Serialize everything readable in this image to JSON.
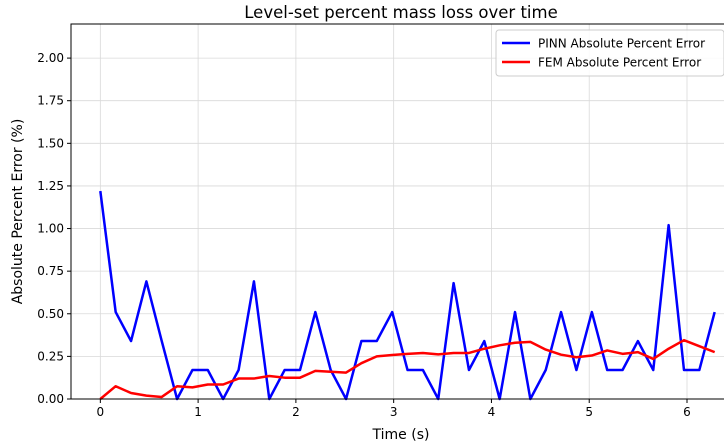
{
  "chart_data": {
    "type": "line",
    "title": "Level-set percent mass loss over time",
    "xlabel": "Time (s)",
    "ylabel": "Absolute Percent Error (%)",
    "xlim": [
      -0.3,
      6.45
    ],
    "ylim": [
      0,
      2.2
    ],
    "xticks": [
      0,
      1,
      2,
      3,
      4,
      5,
      6
    ],
    "yticks": [
      0.0,
      0.25,
      0.5,
      0.75,
      1.0,
      1.25,
      1.5,
      1.75,
      2.0
    ],
    "xtick_labels": [
      "0",
      "1",
      "2",
      "3",
      "4",
      "5",
      "6"
    ],
    "ytick_labels": [
      "0.00",
      "0.25",
      "0.50",
      "0.75",
      "1.00",
      "1.25",
      "1.50",
      "1.75",
      "2.00"
    ],
    "grid": true,
    "legend_position": "top-right",
    "x": [
      0,
      0.157,
      0.314,
      0.471,
      0.628,
      0.785,
      0.942,
      1.099,
      1.256,
      1.414,
      1.571,
      1.728,
      1.885,
      2.042,
      2.199,
      2.356,
      2.513,
      2.67,
      2.827,
      2.985,
      3.142,
      3.299,
      3.456,
      3.613,
      3.77,
      3.927,
      4.084,
      4.241,
      4.398,
      4.555,
      4.712,
      4.869,
      5.027,
      5.184,
      5.341,
      5.498,
      5.655,
      5.812,
      5.969,
      6.126,
      6.283
    ],
    "series": [
      {
        "name": "PINN Absolute Percent Error",
        "color": "#0000ff",
        "values": [
          1.22,
          0.51,
          0.34,
          0.69,
          0.34,
          0.0,
          0.17,
          0.17,
          0.0,
          0.17,
          0.69,
          0.0,
          0.17,
          0.17,
          0.51,
          0.17,
          0.0,
          0.34,
          0.34,
          0.51,
          0.17,
          0.17,
          0.0,
          0.68,
          0.17,
          0.34,
          0.0,
          0.51,
          0.0,
          0.17,
          0.51,
          0.17,
          0.51,
          0.17,
          0.17,
          0.34,
          0.17,
          1.02,
          0.17,
          0.17,
          0.51
        ]
      },
      {
        "name": "FEM Absolute Percent Error",
        "color": "#ff0000",
        "values": [
          0.0,
          0.075,
          0.035,
          0.02,
          0.012,
          0.075,
          0.068,
          0.085,
          0.085,
          0.12,
          0.12,
          0.135,
          0.125,
          0.125,
          0.165,
          0.16,
          0.155,
          0.21,
          0.25,
          0.258,
          0.265,
          0.27,
          0.262,
          0.27,
          0.27,
          0.295,
          0.315,
          0.33,
          0.335,
          0.29,
          0.26,
          0.245,
          0.255,
          0.285,
          0.265,
          0.275,
          0.235,
          0.295,
          0.345,
          0.31,
          0.275
        ]
      }
    ]
  }
}
